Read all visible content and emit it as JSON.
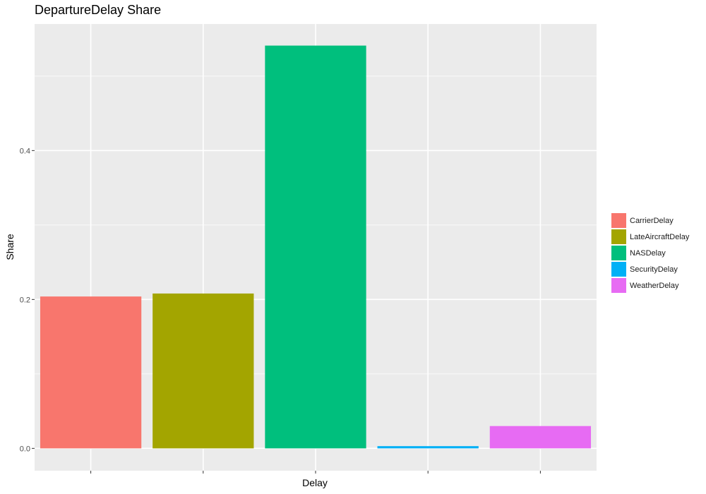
{
  "chart_data": {
    "type": "bar",
    "title": "DepartureDelay Share",
    "xlabel": "Delay",
    "ylabel": "Share",
    "categories": [
      "CarrierDelay",
      "LateAircraftDelay",
      "NASDelay",
      "SecurityDelay",
      "WeatherDelay"
    ],
    "values": [
      0.204,
      0.208,
      0.541,
      0.003,
      0.03
    ],
    "colors": [
      "#F8766D",
      "#A3A500",
      "#00BF7D",
      "#00B0F6",
      "#E76BF3"
    ],
    "ylim": [
      -0.03,
      0.57
    ],
    "yticks": [
      0.0,
      0.2,
      0.4
    ],
    "ytick_labels": [
      "0.0",
      "0.2",
      "0.4"
    ],
    "grid": true,
    "panel_background": "#EBEBEB",
    "legend_position": "right"
  }
}
